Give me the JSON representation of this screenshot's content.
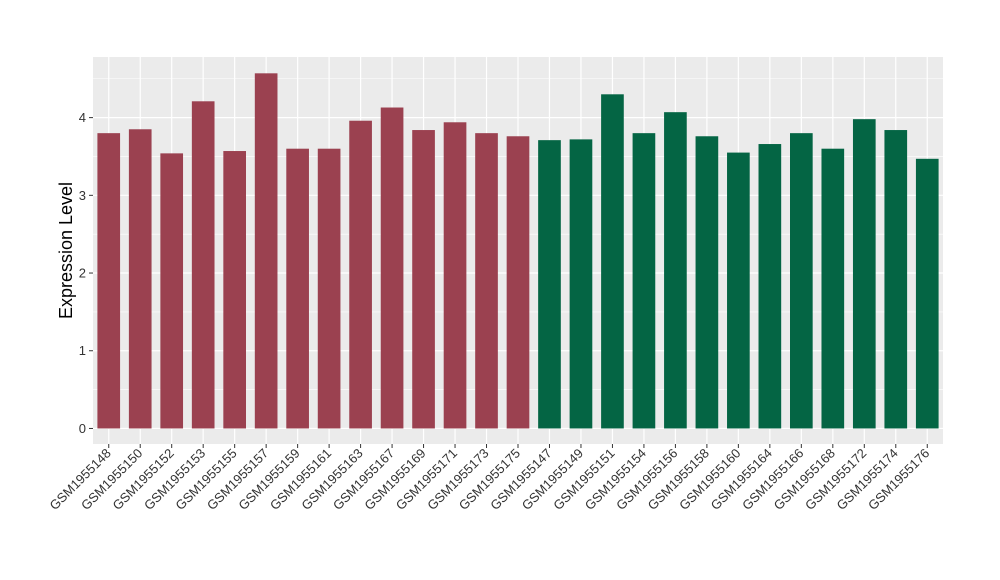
{
  "chart_data": {
    "type": "bar",
    "ylabel": "Expression Level",
    "xlabel": "",
    "ylim": [
      -0.2,
      4.78
    ],
    "yticks": [
      0,
      1,
      2,
      3,
      4
    ],
    "grid": true,
    "categories": [
      "GSM1955148",
      "GSM1955150",
      "GSM1955152",
      "GSM1955153",
      "GSM1955155",
      "GSM1955157",
      "GSM1955159",
      "GSM1955161",
      "GSM1955163",
      "GSM1955167",
      "GSM1955169",
      "GSM1955171",
      "GSM1955173",
      "GSM1955175",
      "GSM1955147",
      "GSM1955149",
      "GSM1955151",
      "GSM1955154",
      "GSM1955156",
      "GSM1955158",
      "GSM1955160",
      "GSM1955164",
      "GSM1955166",
      "GSM1955168",
      "GSM1955172",
      "GSM1955174",
      "GSM1955176"
    ],
    "values": [
      3.8,
      3.85,
      3.54,
      4.21,
      3.57,
      4.57,
      3.6,
      3.6,
      3.96,
      4.13,
      3.84,
      3.94,
      3.8,
      3.76,
      3.71,
      3.72,
      4.3,
      3.8,
      4.07,
      3.76,
      3.55,
      3.66,
      3.8,
      3.6,
      3.98,
      3.84,
      3.47
    ],
    "groups": [
      "a",
      "a",
      "a",
      "a",
      "a",
      "a",
      "a",
      "a",
      "a",
      "a",
      "a",
      "a",
      "a",
      "a",
      "b",
      "b",
      "b",
      "b",
      "b",
      "b",
      "b",
      "b",
      "b",
      "b",
      "b",
      "b",
      "b"
    ],
    "colors": {
      "a": "#9b4150",
      "b": "#046544"
    },
    "panel_background": "#ebebeb",
    "grid_color": "#ffffff"
  }
}
